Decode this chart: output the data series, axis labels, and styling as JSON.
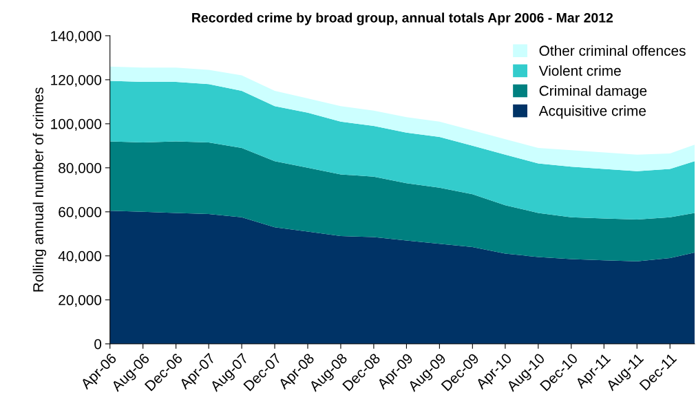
{
  "chart_data": {
    "type": "area",
    "stacked": true,
    "title": "Recorded crime by broad group, annual totals Apr 2006 - Mar 2012",
    "ylabel": "Rolling annual number of crimes",
    "x": [
      "2006-04",
      "2006-08",
      "2006-12",
      "2007-04",
      "2007-08",
      "2007-12",
      "2008-04",
      "2008-08",
      "2008-12",
      "2009-04",
      "2009-08",
      "2009-12",
      "2010-04",
      "2010-08",
      "2010-12",
      "2011-04",
      "2011-08",
      "2011-12",
      "2012-03"
    ],
    "xlim": [
      "2006-04",
      "2012-03"
    ],
    "xticks": [
      {
        "value": "2006-04",
        "label": "Apr-06"
      },
      {
        "value": "2006-08",
        "label": "Aug-06"
      },
      {
        "value": "2006-12",
        "label": "Dec-06"
      },
      {
        "value": "2007-04",
        "label": "Apr-07"
      },
      {
        "value": "2007-08",
        "label": "Aug-07"
      },
      {
        "value": "2007-12",
        "label": "Dec-07"
      },
      {
        "value": "2008-04",
        "label": "Apr-08"
      },
      {
        "value": "2008-08",
        "label": "Aug-08"
      },
      {
        "value": "2008-12",
        "label": "Dec-08"
      },
      {
        "value": "2009-04",
        "label": "Apr-09"
      },
      {
        "value": "2009-08",
        "label": "Aug-09"
      },
      {
        "value": "2009-12",
        "label": "Dec-09"
      },
      {
        "value": "2010-04",
        "label": "Apr-10"
      },
      {
        "value": "2010-08",
        "label": "Aug-10"
      },
      {
        "value": "2010-12",
        "label": "Dec-10"
      },
      {
        "value": "2011-04",
        "label": "Apr-11"
      },
      {
        "value": "2011-08",
        "label": "Aug-11"
      },
      {
        "value": "2011-12",
        "label": "Dec-11"
      }
    ],
    "ylim": [
      0,
      140000
    ],
    "yticks": [
      {
        "value": 0,
        "label": "0"
      },
      {
        "value": 20000,
        "label": "20,000"
      },
      {
        "value": 40000,
        "label": "40,000"
      },
      {
        "value": 60000,
        "label": "60,000"
      },
      {
        "value": 80000,
        "label": "80,000"
      },
      {
        "value": 100000,
        "label": "100,000"
      },
      {
        "value": 120000,
        "label": "120,000"
      },
      {
        "value": 140000,
        "label": "140,000"
      }
    ],
    "grid": false,
    "legend": "top right",
    "series": [
      {
        "name": "Acquisitive crime",
        "color": "#003366",
        "values": [
          60500,
          60000,
          59500,
          59000,
          57500,
          53000,
          51000,
          49000,
          48500,
          47000,
          45500,
          44000,
          41000,
          39500,
          38500,
          38000,
          37500,
          39000,
          41500
        ]
      },
      {
        "name": "Criminal damage",
        "color": "#008080",
        "values": [
          31500,
          31500,
          32500,
          32500,
          31500,
          30000,
          29000,
          28000,
          27500,
          26000,
          25500,
          24000,
          22000,
          20000,
          19000,
          19000,
          19000,
          18500,
          18000
        ]
      },
      {
        "name": "Violent crime",
        "color": "#33cccc",
        "values": [
          27500,
          27500,
          27000,
          26500,
          26000,
          25000,
          25000,
          24000,
          23000,
          23000,
          23000,
          22000,
          23000,
          22500,
          23000,
          22500,
          22000,
          22000,
          23500
        ]
      },
      {
        "name": "Other criminal offences",
        "color": "#ccffff",
        "values": [
          6500,
          6500,
          6500,
          6500,
          7000,
          7000,
          6500,
          7000,
          7000,
          7000,
          7000,
          7000,
          7000,
          7000,
          7500,
          7500,
          7500,
          7000,
          7500
        ]
      }
    ]
  }
}
